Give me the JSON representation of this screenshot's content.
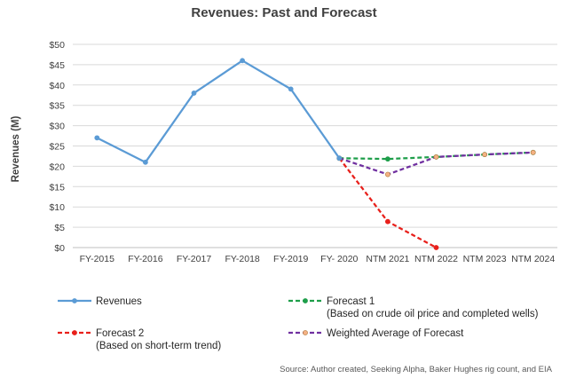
{
  "chart_data": {
    "type": "line",
    "title": "Revenues: Past and Forecast",
    "ylabel": "Revenues (M)",
    "xlabel": "",
    "ylim": [
      0,
      50
    ],
    "yticks": [
      "$0",
      "$5",
      "$10",
      "$15",
      "$20",
      "$25",
      "$30",
      "$35",
      "$40",
      "$45",
      "$50"
    ],
    "categories": [
      "FY-2015",
      "FY-2016",
      "FY-2017",
      "FY-2018",
      "FY-2019",
      "FY- 2020",
      "NTM 2021",
      "NTM 2022",
      "NTM 2023",
      "NTM 2024"
    ],
    "grid": true,
    "legend_position": "bottom",
    "series": [
      {
        "name": "Revenues",
        "color": "#5B9BD5",
        "style": "solid",
        "values": [
          27,
          21,
          38,
          46,
          39,
          22,
          null,
          null,
          null,
          null
        ]
      },
      {
        "name": "Forecast 1",
        "name_line2": "(Based on crude oil price and completed wells)",
        "color": "#1E9E4A",
        "style": "dashed",
        "values": [
          null,
          null,
          null,
          null,
          null,
          22,
          21.8,
          22.3,
          22.9,
          23.4
        ]
      },
      {
        "name": "Forecast 2",
        "name_line2": "(Based on short-term trend)",
        "color": "#E8201B",
        "style": "dashed",
        "values": [
          null,
          null,
          null,
          null,
          null,
          22,
          6.4,
          0,
          null,
          null
        ]
      },
      {
        "name": "Weighted Average of Forecast",
        "color": "#7030A0",
        "marker_color": "#F4B183",
        "style": "dashed",
        "values": [
          null,
          null,
          null,
          null,
          null,
          22,
          18,
          22.3,
          22.9,
          23.4
        ]
      }
    ],
    "source": "Source: Author created, Seeking Alpha, Baker Hughes rig count, and EIA"
  }
}
